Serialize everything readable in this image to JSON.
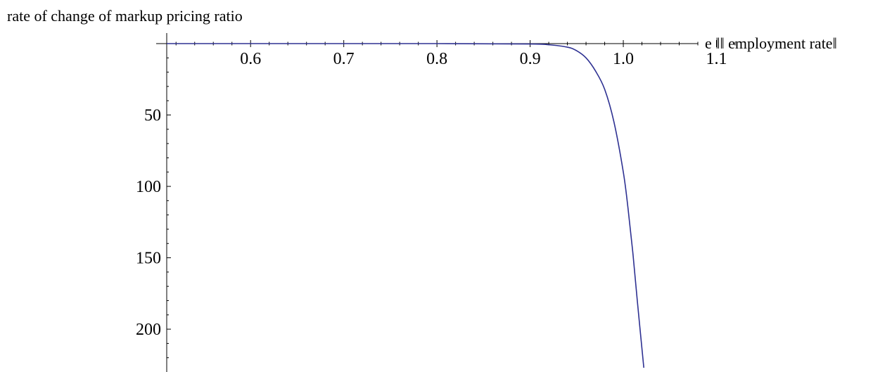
{
  "chart_data": {
    "type": "line",
    "ylabel": "rate of change of markup  pricing ratio",
    "xlabel": "e ‖‖ employment rate‖",
    "xlim": [
      0.51,
      1.12
    ],
    "ylim": [
      0,
      230
    ],
    "x_ticks": [
      0.6,
      0.7,
      0.8,
      0.9,
      1.0,
      1.1
    ],
    "x_tick_labels": [
      "0.6",
      "0.7",
      "0.8",
      "0.9",
      "1.0",
      "1.1"
    ],
    "y_ticks": [
      50,
      100,
      150,
      200
    ],
    "y_tick_labels": [
      "50",
      "100",
      "150",
      "200"
    ],
    "y_axis_inverted": true,
    "series": [
      {
        "color": "#2e3192",
        "x": [
          0.51,
          0.6,
          0.7,
          0.8,
          0.9,
          0.92,
          0.94,
          0.95,
          0.96,
          0.97,
          0.98,
          0.99,
          1.0,
          1.005,
          1.01,
          1.015,
          1.022
        ],
        "y": [
          0,
          0,
          0,
          0,
          0.3,
          0.8,
          2.5,
          5,
          10,
          19,
          32,
          55,
          90,
          115,
          145,
          180,
          227
        ]
      }
    ]
  }
}
